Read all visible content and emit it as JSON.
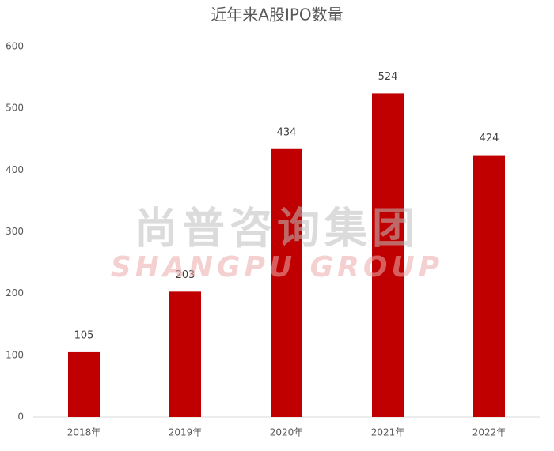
{
  "chart_data": {
    "type": "bar",
    "title": "近年来A股IPO数量",
    "categories": [
      "2018年",
      "2019年",
      "2020年",
      "2021年",
      "2022年"
    ],
    "values": [
      105,
      203,
      434,
      524,
      424
    ],
    "color": "#c00000",
    "ylim": [
      0,
      600
    ],
    "yticks": [
      0,
      100,
      200,
      300,
      400,
      500,
      600
    ],
    "grid": false,
    "watermark": {
      "cn": "尚普咨询集团",
      "en": "SHANGPU GROUP"
    }
  }
}
